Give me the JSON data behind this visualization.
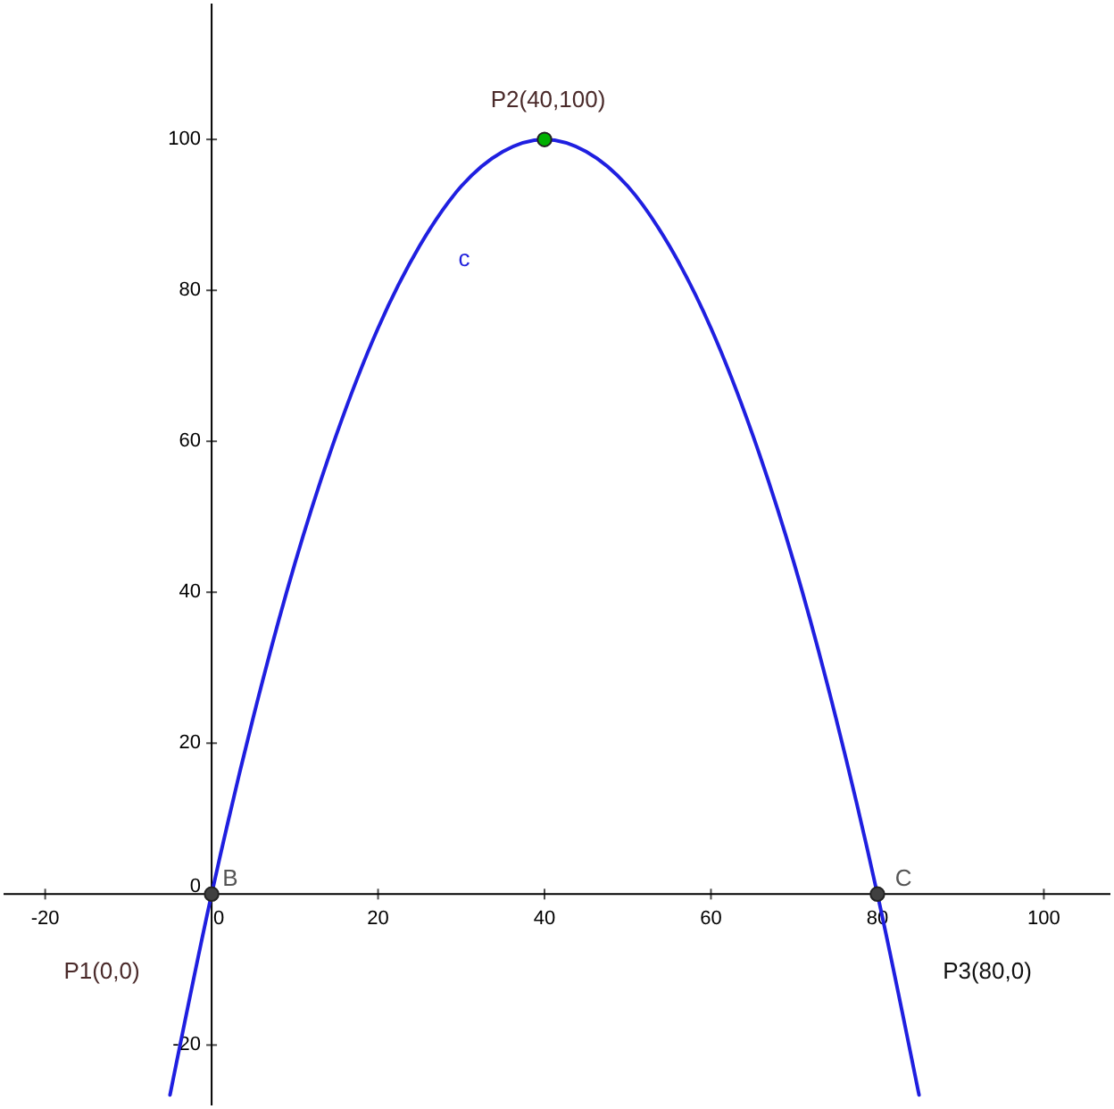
{
  "chart_data": {
    "type": "line",
    "xlim": [
      -25,
      108
    ],
    "ylim": [
      -28,
      118
    ],
    "xticks": [
      -20,
      0,
      20,
      40,
      60,
      80,
      100
    ],
    "yticks": [
      -20,
      0,
      20,
      40,
      60,
      80,
      100
    ],
    "grid": false,
    "line_style": "solid",
    "series": [
      {
        "color": "#1f1fe0",
        "x": [
          -5,
          0,
          5,
          10,
          15,
          20,
          25,
          30,
          35,
          40,
          45,
          50,
          55,
          60,
          65,
          70,
          75,
          80,
          85
        ],
        "values": [
          -26.6,
          0,
          23.4,
          43.8,
          60.9,
          75,
          85.9,
          93.8,
          98.4,
          100,
          98.4,
          93.8,
          85.9,
          75,
          60.9,
          43.8,
          23.4,
          0,
          -26.6
        ]
      },
      {
        "type": "scatter",
        "marker": "circle",
        "color": "#404040",
        "x": [
          0,
          80
        ],
        "values": [
          0,
          0
        ]
      },
      {
        "type": "scatter",
        "marker": "circle",
        "color": "#00b000",
        "x": [
          40
        ],
        "values": [
          100
        ]
      }
    ],
    "annotations": [
      "P2(40,100)",
      "P1(0,0)",
      "P3(80,0)",
      "B",
      "C",
      "c"
    ]
  }
}
